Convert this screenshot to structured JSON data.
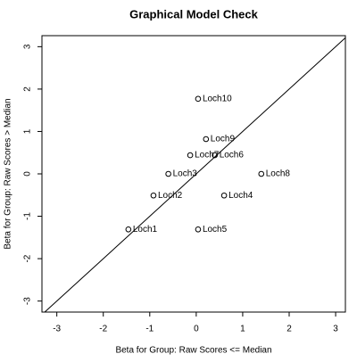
{
  "chart_data": {
    "type": "scatter",
    "title": "Graphical Model Check",
    "x_label": "Beta for Group: Raw Scores <= Median",
    "y_label": "Beta for Group: Raw Scores > Median",
    "labels": [
      "Loch1",
      "Loch2",
      "Loch3",
      "Loch4",
      "Loch5",
      "Loch6",
      "Loch7",
      "Loch8",
      "Loch9",
      "Loch10"
    ],
    "x": [
      -1.46,
      -0.92,
      -0.6,
      0.6,
      0.04,
      0.4,
      -0.13,
      1.4,
      0.21,
      0.04
    ],
    "values": [
      -1.31,
      -0.51,
      0.0,
      -0.51,
      -1.31,
      0.44,
      0.44,
      0.0,
      0.82,
      1.77
    ],
    "color": "#000000",
    "identity_line": true,
    "xlim": [
      -3.32,
      3.21
    ],
    "ylim": [
      -3.26,
      3.26
    ],
    "xticks": [
      -3,
      -2,
      -1,
      0,
      1,
      2,
      3
    ],
    "yticks": [
      -3,
      -2,
      -1,
      0,
      1,
      2,
      3
    ]
  }
}
